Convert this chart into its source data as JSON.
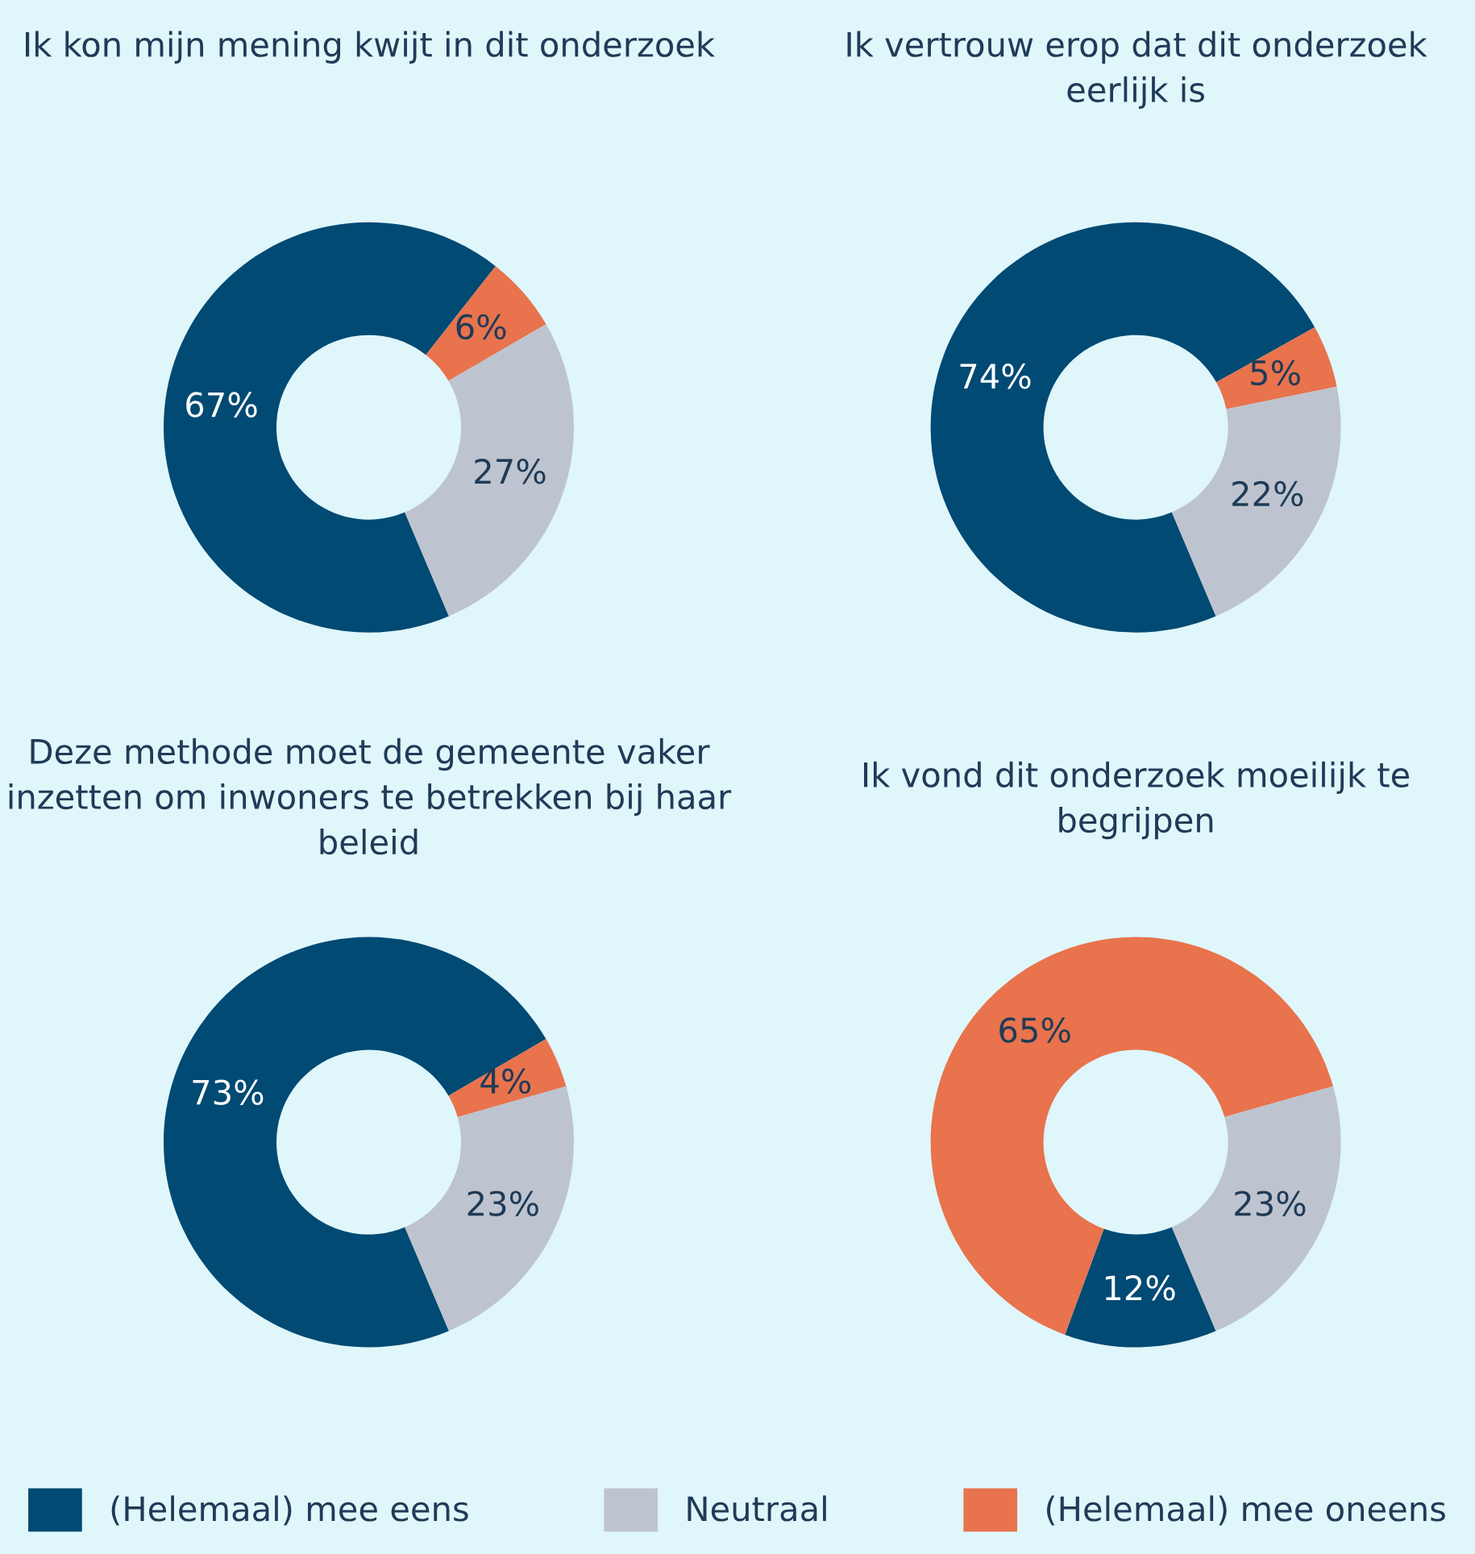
{
  "chart_data": [
    {
      "type": "donut",
      "title": "Ik kon mijn mening kwijt in dit onderzoek",
      "categories": [
        "(Helemaal) mee eens",
        "(Helemaal) mee oneens",
        "Neutraal"
      ],
      "values": [
        67,
        6,
        27
      ],
      "value_labels": [
        "67%",
        "6%",
        "27%"
      ],
      "colors": [
        "#004a73",
        "#e8734d",
        "#bec4cf"
      ],
      "legend": "bottom"
    },
    {
      "type": "donut",
      "title": "Ik vertrouw erop dat dit onderzoek eerlijk is",
      "categories": [
        null,
        null,
        null
      ],
      "values": [
        74,
        5,
        22
      ],
      "value_labels": [
        "74%",
        "5%",
        "22%"
      ],
      "colors": [
        "#004a73",
        "#e8734d",
        "#bec4cf"
      ]
    },
    {
      "type": "donut",
      "title": "Deze methode moet de gemeente vaker inzetten om inwoners te betrekken bij haar beleid",
      "categories": [
        null,
        null,
        null
      ],
      "values": [
        73,
        4,
        23
      ],
      "value_labels": [
        "73%",
        "4%",
        "23%"
      ],
      "colors": [
        "#004a73",
        "#e8734d",
        "#bec4cf"
      ]
    },
    {
      "type": "donut",
      "title": "Ik vond dit onderzoek moeilijk te begrijpen",
      "categories": [
        null,
        null,
        null
      ],
      "values": [
        12,
        65,
        23
      ],
      "value_labels": [
        "12%",
        "65%",
        "23%"
      ],
      "colors": [
        "#004a73",
        "#e8734d",
        "#bec4cf"
      ]
    }
  ]
}
